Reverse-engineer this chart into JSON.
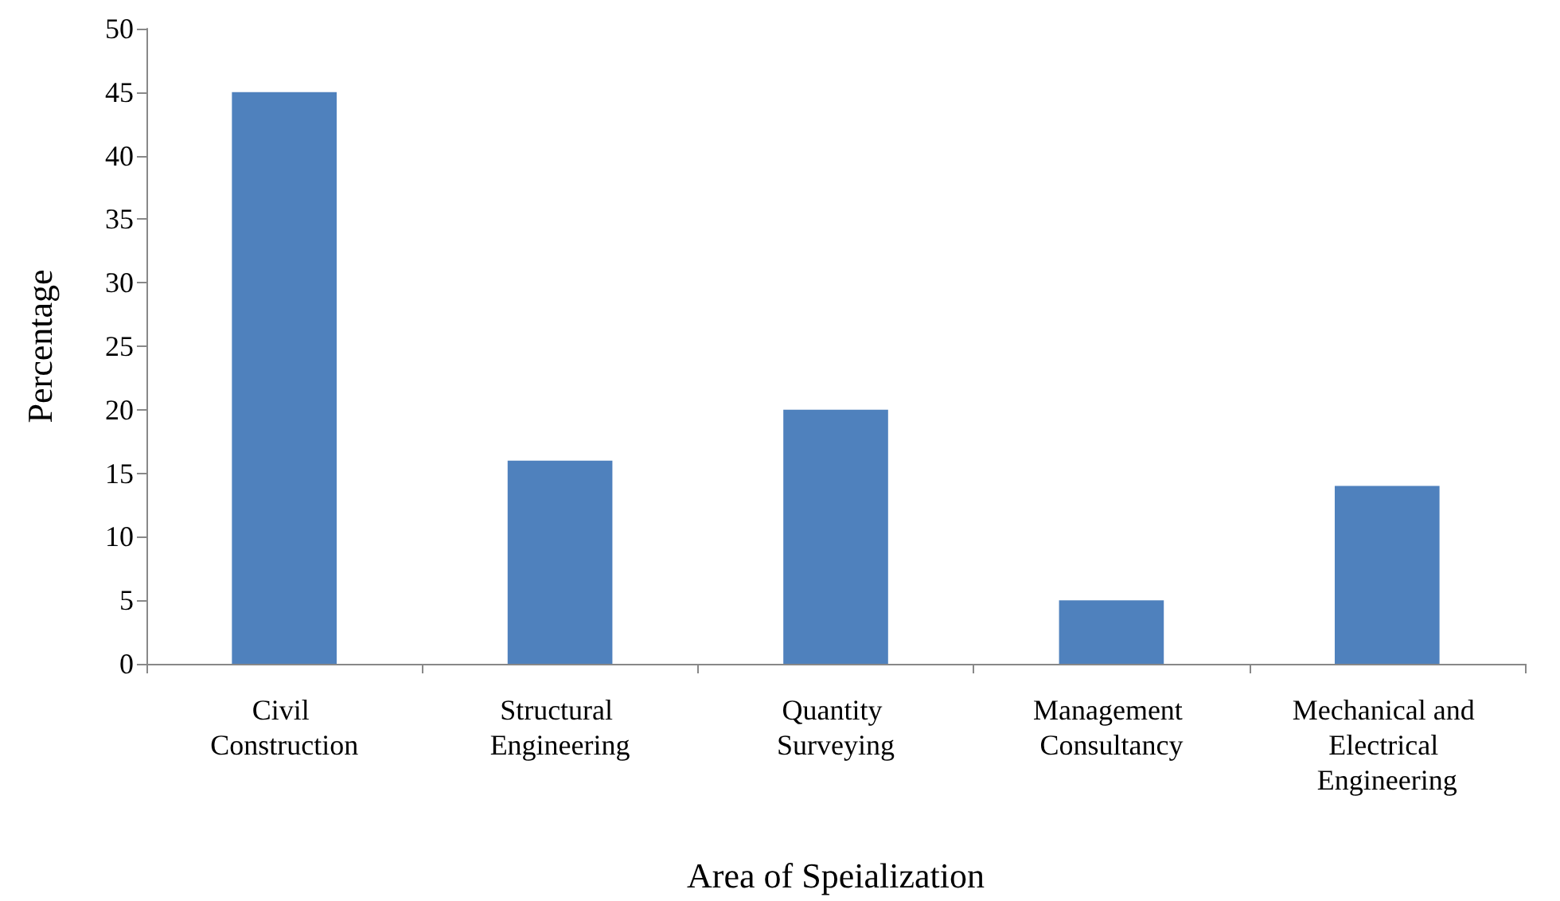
{
  "chart_data": {
    "type": "bar",
    "xlabel": "Area of Speialization",
    "ylabel": "Percentage",
    "categories": [
      "Civil Construction",
      "Structural Engineering",
      "Quantity Surveying",
      "Management Consultancy",
      "Mechanical and Electrical Engineering"
    ],
    "values": [
      45,
      16,
      20,
      5,
      14
    ],
    "color": "#4f81bd",
    "ylim": [
      0,
      50
    ],
    "yticks": [
      0,
      5,
      10,
      15,
      20,
      25,
      30,
      35,
      40,
      45,
      50
    ],
    "grid": false
  }
}
